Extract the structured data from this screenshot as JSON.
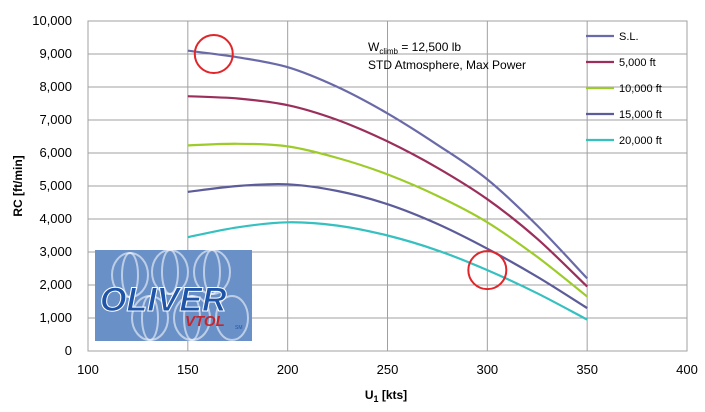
{
  "chart_data": {
    "type": "line",
    "xlabel": "U",
    "xlabel_sub": "1",
    "xlabel_unit": " [kts]",
    "ylabel": "RC [ft/min]",
    "xlim": [
      100,
      400
    ],
    "ylim": [
      0,
      10000
    ],
    "x_ticks": [
      "100",
      "150",
      "200",
      "250",
      "300",
      "350",
      "400"
    ],
    "y_ticks": [
      "0",
      "1,000",
      "2,000",
      "3,000",
      "4,000",
      "5,000",
      "6,000",
      "7,000",
      "8,000",
      "9,000",
      "10,000"
    ],
    "grid": true,
    "legend_position": "top-right",
    "annotation": {
      "line1_prefix": "W",
      "line1_sub": "climb",
      "line1_suffix": " = 12,500 lb",
      "line2": "STD Atmosphere,  Max Power"
    },
    "series": [
      {
        "name": "S.L.",
        "color": "#6a6aa8",
        "points": [
          [
            150,
            9100
          ],
          [
            175,
            8900
          ],
          [
            200,
            8600
          ],
          [
            225,
            8000
          ],
          [
            250,
            7200
          ],
          [
            275,
            6250
          ],
          [
            300,
            5200
          ],
          [
            325,
            3800
          ],
          [
            350,
            2200
          ]
        ]
      },
      {
        "name": "5,000 ft",
        "color": "#9b2f5c",
        "points": [
          [
            150,
            7720
          ],
          [
            175,
            7650
          ],
          [
            200,
            7450
          ],
          [
            225,
            7000
          ],
          [
            250,
            6350
          ],
          [
            275,
            5550
          ],
          [
            300,
            4600
          ],
          [
            325,
            3400
          ],
          [
            350,
            1950
          ]
        ]
      },
      {
        "name": "10,000 ft",
        "color": "#9dcc2a",
        "points": [
          [
            150,
            6230
          ],
          [
            175,
            6280
          ],
          [
            200,
            6200
          ],
          [
            225,
            5850
          ],
          [
            250,
            5350
          ],
          [
            275,
            4700
          ],
          [
            300,
            3900
          ],
          [
            325,
            2850
          ],
          [
            350,
            1650
          ]
        ]
      },
      {
        "name": "15,000 ft",
        "color": "#5c5c9a",
        "points": [
          [
            150,
            4820
          ],
          [
            175,
            5000
          ],
          [
            200,
            5050
          ],
          [
            225,
            4850
          ],
          [
            250,
            4450
          ],
          [
            275,
            3850
          ],
          [
            300,
            3100
          ],
          [
            325,
            2250
          ],
          [
            350,
            1300
          ]
        ]
      },
      {
        "name": "20,000 ft",
        "color": "#36c0c0",
        "points": [
          [
            150,
            3450
          ],
          [
            175,
            3750
          ],
          [
            200,
            3900
          ],
          [
            225,
            3800
          ],
          [
            250,
            3500
          ],
          [
            275,
            3050
          ],
          [
            300,
            2450
          ],
          [
            325,
            1750
          ],
          [
            350,
            950
          ]
        ]
      }
    ],
    "highlight_circles": [
      {
        "x": 163,
        "y": 9000
      },
      {
        "x": 300,
        "y": 2450
      }
    ]
  },
  "logo": {
    "text_main": "OLIVER",
    "text_sub": "VTOL",
    "text_sm": "SM",
    "colors": {
      "bg": "#6a90c8",
      "main": "#1e55a8",
      "sub": "#c2272d"
    }
  }
}
